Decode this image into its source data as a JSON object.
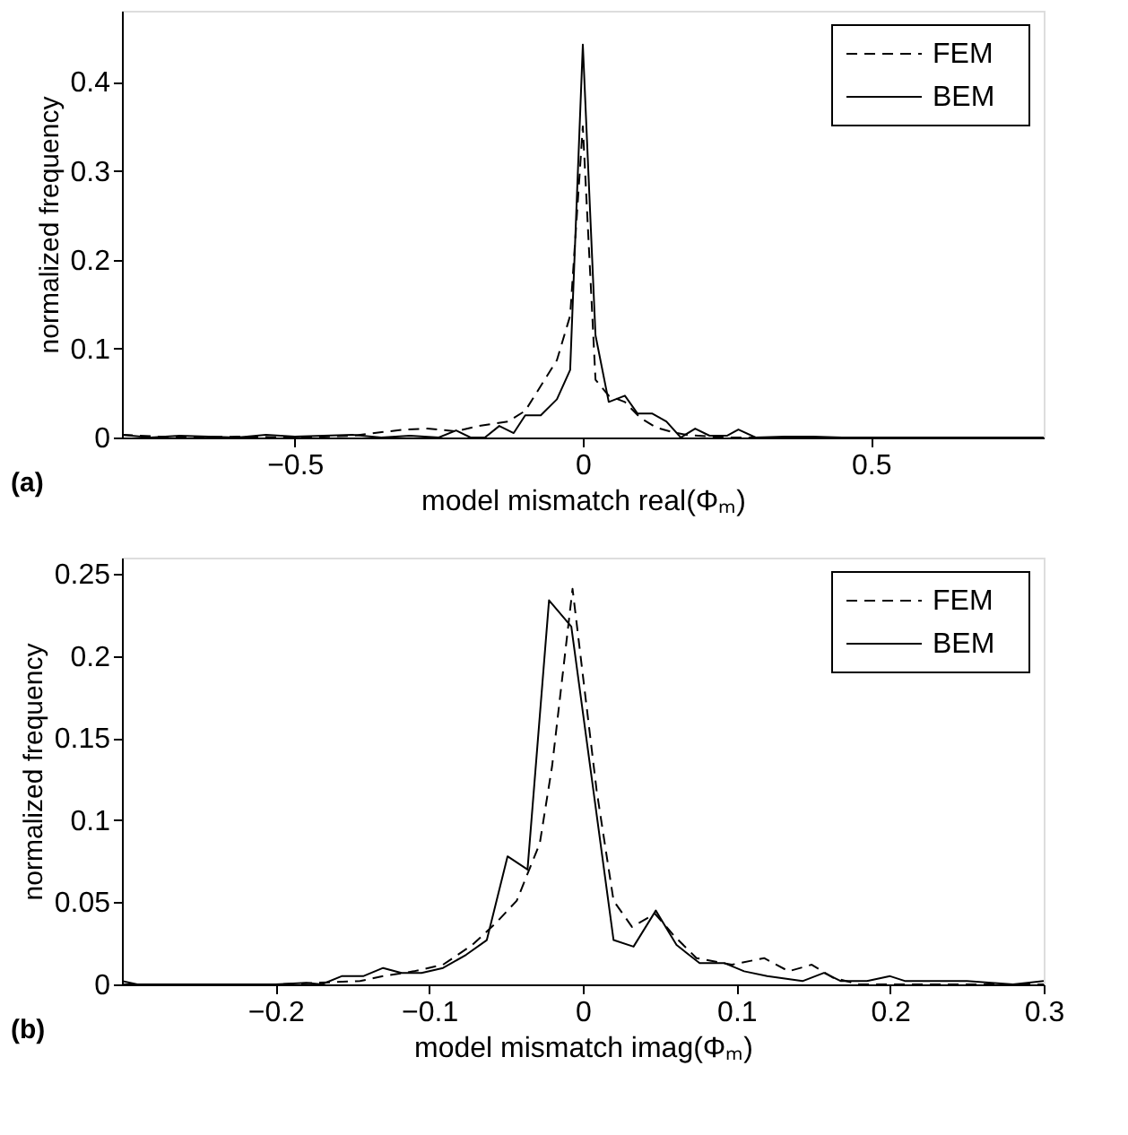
{
  "chart_data": [
    {
      "type": "line",
      "xlabel": "model mismatch real(Φₘ)",
      "ylabel": "normalized frequency",
      "annotations": [
        "(a)"
      ],
      "xlim": [
        -0.8,
        0.8
      ],
      "ylim": [
        0,
        0.48
      ],
      "xticks": [
        {
          "value": -0.5,
          "label": "−0.5"
        },
        0,
        0.5
      ],
      "yticks": [
        0,
        0.1,
        0.2,
        0.3,
        0.4
      ],
      "grid": false,
      "legend": "top right",
      "series": [
        {
          "name": "FEM",
          "color": "#000000",
          "line_style": "dashed",
          "x": [
            -0.8,
            -0.7,
            -0.6,
            -0.5,
            -0.4,
            -0.31,
            -0.27,
            -0.22,
            -0.18,
            -0.13,
            -0.1,
            -0.073,
            -0.045,
            -0.022,
            0,
            0.022,
            0.045,
            0.073,
            0.1,
            0.128,
            0.156,
            0.18,
            0.25,
            0.4,
            0.8
          ],
          "values": [
            0.003,
            0,
            0.001,
            0,
            0.002,
            0.009,
            0.01,
            0.007,
            0.013,
            0.018,
            0.03,
            0.058,
            0.087,
            0.137,
            0.35,
            0.065,
            0.047,
            0.04,
            0.022,
            0.011,
            0.006,
            0.003,
            0,
            0,
            0
          ]
        },
        {
          "name": "BEM",
          "color": "#000000",
          "line_style": "solid",
          "x": [
            -0.8,
            -0.75,
            -0.7,
            -0.65,
            -0.6,
            -0.55,
            -0.5,
            -0.45,
            -0.4,
            -0.35,
            -0.3,
            -0.25,
            -0.22,
            -0.195,
            -0.17,
            -0.145,
            -0.12,
            -0.1,
            -0.073,
            -0.045,
            -0.022,
            0,
            0.022,
            0.045,
            0.073,
            0.095,
            0.12,
            0.145,
            0.17,
            0.195,
            0.22,
            0.25,
            0.27,
            0.3,
            0.35,
            0.4,
            0.45,
            0.8
          ],
          "values": [
            0.003,
            0,
            0.002,
            0.001,
            0,
            0.003,
            0.001,
            0.002,
            0.003,
            0,
            0.002,
            0,
            0.008,
            0,
            0,
            0.013,
            0.005,
            0.025,
            0.025,
            0.043,
            0.076,
            0.442,
            0.115,
            0.04,
            0.047,
            0.027,
            0.027,
            0.018,
            0,
            0.01,
            0.002,
            0.002,
            0.009,
            0,
            0.001,
            0.001,
            0,
            0
          ]
        }
      ]
    },
    {
      "type": "line",
      "xlabel": "model mismatch imag(Φₘ)",
      "ylabel": "normalized frequency",
      "annotations": [
        "(b)"
      ],
      "xlim": [
        -0.3,
        0.3
      ],
      "ylim": [
        0,
        0.26
      ],
      "xticks": [
        {
          "value": -0.2,
          "label": "−0.2"
        },
        {
          "value": -0.1,
          "label": "−0.1"
        },
        0,
        0.1,
        0.2,
        0.3
      ],
      "yticks": [
        0,
        0.05,
        0.1,
        0.15,
        0.2,
        0.25
      ],
      "grid": false,
      "legend": "top right",
      "series": [
        {
          "name": "FEM",
          "color": "#000000",
          "line_style": "dashed",
          "x": [
            -0.3,
            -0.2,
            -0.145,
            -0.13,
            -0.11,
            -0.091,
            -0.072,
            -0.057,
            -0.043,
            -0.028,
            -0.02,
            -0.0067,
            0.009,
            0.02,
            0.032,
            0.047,
            0.06,
            0.074,
            0.097,
            0.118,
            0.134,
            0.149,
            0.163,
            0.18,
            0.3
          ],
          "values": [
            0,
            0,
            0.002,
            0.005,
            0.008,
            0.012,
            0.024,
            0.037,
            0.051,
            0.086,
            0.133,
            0.241,
            0.118,
            0.051,
            0.035,
            0.043,
            0.029,
            0.016,
            0.012,
            0.016,
            0.008,
            0.012,
            0.004,
            0,
            0
          ]
        },
        {
          "name": "BEM",
          "color": "#000000",
          "line_style": "solid",
          "x": [
            -0.3,
            -0.29,
            -0.2,
            -0.18,
            -0.17,
            -0.157,
            -0.143,
            -0.13,
            -0.118,
            -0.105,
            -0.091,
            -0.076,
            -0.0625,
            -0.049,
            -0.036,
            -0.022,
            -0.0075,
            0.02,
            0.033,
            0.0475,
            0.061,
            0.076,
            0.092,
            0.105,
            0.12,
            0.143,
            0.157,
            0.168,
            0.185,
            0.2,
            0.21,
            0.25,
            0.28,
            0.3
          ],
          "values": [
            0.002,
            0,
            0,
            0.001,
            0,
            0.005,
            0.005,
            0.01,
            0.007,
            0.007,
            0.01,
            0.018,
            0.027,
            0.078,
            0.07,
            0.234,
            0.218,
            0.027,
            0.023,
            0.045,
            0.024,
            0.013,
            0.013,
            0.008,
            0.005,
            0.002,
            0.007,
            0.002,
            0.002,
            0.005,
            0.002,
            0.002,
            0,
            0.002
          ]
        }
      ]
    }
  ]
}
